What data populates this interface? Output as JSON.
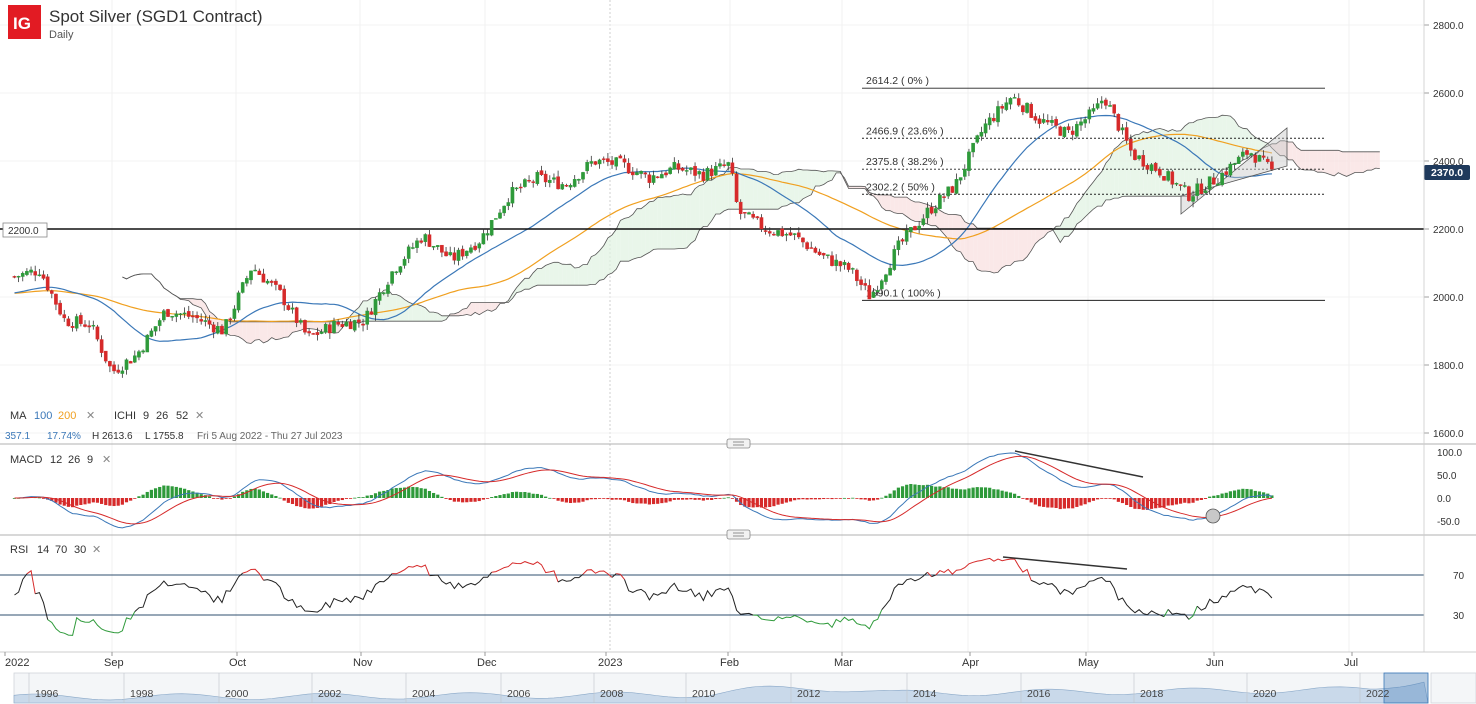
{
  "header": {
    "logo": "IG",
    "title": "Spot Silver (SGD1 Contract)",
    "interval": "Daily"
  },
  "colors": {
    "bull": "#2e9a3a",
    "bear": "#d62a2a",
    "ma100": "#3b78b8",
    "ma200": "#f0a020",
    "macd_line": "#3b78b8",
    "signal_line": "#d62a2a",
    "rsi_line": "#222222",
    "rsi_overbought": "#d62a2a",
    "rsi_oversold": "#2e9a3a",
    "last_price_bg": "#1f3a5c",
    "logo_bg": "#e21b23"
  },
  "legend": {
    "ma_label": "MA",
    "ma_100": "100",
    "ma_200": "200",
    "ichi_label": "ICHI",
    "ichi_params": [
      "9",
      "26",
      "52"
    ],
    "close_icon": "close-icon"
  },
  "stats": {
    "change": "357.1",
    "change_pct": "17.74%",
    "high": "H 2613.6",
    "low": "L 1755.8",
    "range": "Fri 5 Aug 2022 - Thu 27 Jul 2023"
  },
  "price_axis": {
    "ticks": [
      "2800.0",
      "2600.0",
      "2400.0",
      "2200.0",
      "2000.0",
      "1800.0",
      "1600.0"
    ],
    "last_price": "2370.0",
    "level_label": "2200.0"
  },
  "fib_levels": [
    {
      "label": "2614.2 ( 0% )",
      "value": 2614.2,
      "style": "solid"
    },
    {
      "label": "2466.9 ( 23.6% )",
      "value": 2466.9,
      "style": "dotted"
    },
    {
      "label": "2375.8 ( 38.2% )",
      "value": 2375.8,
      "style": "dotted"
    },
    {
      "label": "2302.2 ( 50% )",
      "value": 2302.2,
      "style": "dotted"
    },
    {
      "label": "1990.1 ( 100% )",
      "value": 1990.1,
      "style": "solid"
    }
  ],
  "macd": {
    "label": "MACD",
    "params": [
      "12",
      "26",
      "9"
    ],
    "ticks": [
      "100.0",
      "50.0",
      "0.0",
      "-50.0"
    ]
  },
  "rsi": {
    "label": "RSI",
    "params": [
      "14",
      "70",
      "30"
    ],
    "ticks": [
      "70",
      "30"
    ]
  },
  "time_axis": {
    "labels": [
      "2022",
      "Sep",
      "Oct",
      "Nov",
      "Dec",
      "2023",
      "Feb",
      "Mar",
      "Apr",
      "May",
      "Jun",
      "Jul"
    ]
  },
  "navigator": {
    "labels": [
      "1996",
      "1998",
      "2000",
      "2002",
      "2004",
      "2006",
      "2008",
      "2010",
      "2012",
      "2014",
      "2016",
      "2018",
      "2020",
      "2022"
    ]
  },
  "chart_data": {
    "type": "candlestick",
    "title": "Spot Silver (SGD1 Contract)",
    "interval": "Daily",
    "ylim": [
      1600,
      2800
    ],
    "close_path": [
      {
        "date": "2022-08-05",
        "close": 2060
      },
      {
        "date": "2022-08-12",
        "close": 2080
      },
      {
        "date": "2022-08-19",
        "close": 1930
      },
      {
        "date": "2022-08-26",
        "close": 1920
      },
      {
        "date": "2022-09-01",
        "close": 1780
      },
      {
        "date": "2022-09-07",
        "close": 1830
      },
      {
        "date": "2022-09-14",
        "close": 1960
      },
      {
        "date": "2022-09-21",
        "close": 1940
      },
      {
        "date": "2022-09-28",
        "close": 1900
      },
      {
        "date": "2022-10-05",
        "close": 2090
      },
      {
        "date": "2022-10-12",
        "close": 2010
      },
      {
        "date": "2022-10-19",
        "close": 1880
      },
      {
        "date": "2022-10-26",
        "close": 1920
      },
      {
        "date": "2022-11-02",
        "close": 1930
      },
      {
        "date": "2022-11-09",
        "close": 2080
      },
      {
        "date": "2022-11-16",
        "close": 2180
      },
      {
        "date": "2022-11-23",
        "close": 2110
      },
      {
        "date": "2022-11-30",
        "close": 2170
      },
      {
        "date": "2022-12-07",
        "close": 2300
      },
      {
        "date": "2022-12-14",
        "close": 2350
      },
      {
        "date": "2022-12-21",
        "close": 2330
      },
      {
        "date": "2022-12-28",
        "close": 2400
      },
      {
        "date": "2023-01-04",
        "close": 2390
      },
      {
        "date": "2023-01-11",
        "close": 2350
      },
      {
        "date": "2023-01-18",
        "close": 2380
      },
      {
        "date": "2023-01-25",
        "close": 2360
      },
      {
        "date": "2023-02-01",
        "close": 2390
      },
      {
        "date": "2023-02-03",
        "close": 2250
      },
      {
        "date": "2023-02-10",
        "close": 2200
      },
      {
        "date": "2023-02-17",
        "close": 2180
      },
      {
        "date": "2023-02-24",
        "close": 2120
      },
      {
        "date": "2023-03-03",
        "close": 2080
      },
      {
        "date": "2023-03-08",
        "close": 2000
      },
      {
        "date": "2023-03-15",
        "close": 2150
      },
      {
        "date": "2023-03-22",
        "close": 2250
      },
      {
        "date": "2023-03-29",
        "close": 2330
      },
      {
        "date": "2023-04-05",
        "close": 2500
      },
      {
        "date": "2023-04-12",
        "close": 2590
      },
      {
        "date": "2023-04-19",
        "close": 2520
      },
      {
        "date": "2023-04-26",
        "close": 2480
      },
      {
        "date": "2023-05-03",
        "close": 2550
      },
      {
        "date": "2023-05-05",
        "close": 2590
      },
      {
        "date": "2023-05-12",
        "close": 2420
      },
      {
        "date": "2023-05-19",
        "close": 2370
      },
      {
        "date": "2023-05-26",
        "close": 2300
      },
      {
        "date": "2023-06-02",
        "close": 2350
      },
      {
        "date": "2023-06-09",
        "close": 2430
      },
      {
        "date": "2023-06-14",
        "close": 2370
      }
    ],
    "ma100_end": 2310,
    "ma200_end": 2290,
    "annotations": [
      "2200.0",
      "2614.2 ( 0% )",
      "2466.9 ( 23.6% )",
      "2375.8 ( 38.2% )",
      "2302.2 ( 50% )",
      "1990.1 ( 100% )"
    ]
  }
}
